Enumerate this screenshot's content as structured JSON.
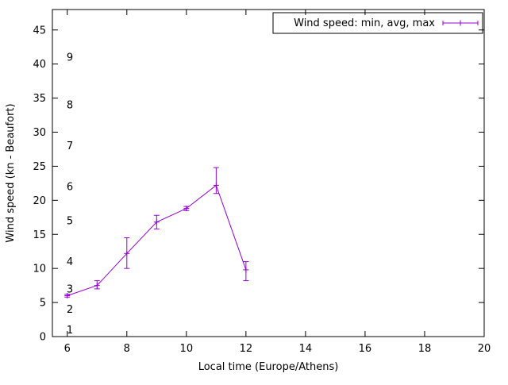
{
  "chart_data": {
    "type": "line",
    "title": "",
    "xlabel": "Local time (Europe/Athens)",
    "ylabel": "Wind speed (kn - Beaufort)",
    "legend": {
      "label": "Wind speed: min, avg, max",
      "position": "top-right",
      "box": true
    },
    "series_color": "#9400d3",
    "axis_color": "#000000",
    "x": [
      6,
      7,
      8,
      9,
      10,
      11,
      12
    ],
    "series": [
      {
        "name": "avg",
        "values": [
          6.0,
          7.5,
          12.2,
          16.8,
          18.8,
          22.2,
          9.8
        ]
      },
      {
        "name": "min",
        "values": [
          5.8,
          7.0,
          10.0,
          15.8,
          18.5,
          21.0,
          8.2
        ]
      },
      {
        "name": "max",
        "values": [
          6.2,
          8.2,
          14.5,
          17.8,
          19.1,
          24.8,
          11.0
        ]
      }
    ],
    "xlim": [
      5.5,
      20
    ],
    "ylim": [
      0,
      48
    ],
    "xticks": [
      6,
      8,
      10,
      12,
      14,
      16,
      18,
      20
    ],
    "yticks_knots": [
      0,
      5,
      10,
      15,
      20,
      25,
      30,
      35,
      40,
      45
    ],
    "yticks_beaufort": [
      {
        "label": "1",
        "kn": 1
      },
      {
        "label": "2",
        "kn": 4
      },
      {
        "label": "3",
        "kn": 7
      },
      {
        "label": "4",
        "kn": 11
      },
      {
        "label": "5",
        "kn": 17
      },
      {
        "label": "6",
        "kn": 22
      },
      {
        "label": "7",
        "kn": 28
      },
      {
        "label": "8",
        "kn": 34
      },
      {
        "label": "9",
        "kn": 41
      }
    ],
    "grid": false,
    "marker": "plus",
    "errorbars": true
  }
}
